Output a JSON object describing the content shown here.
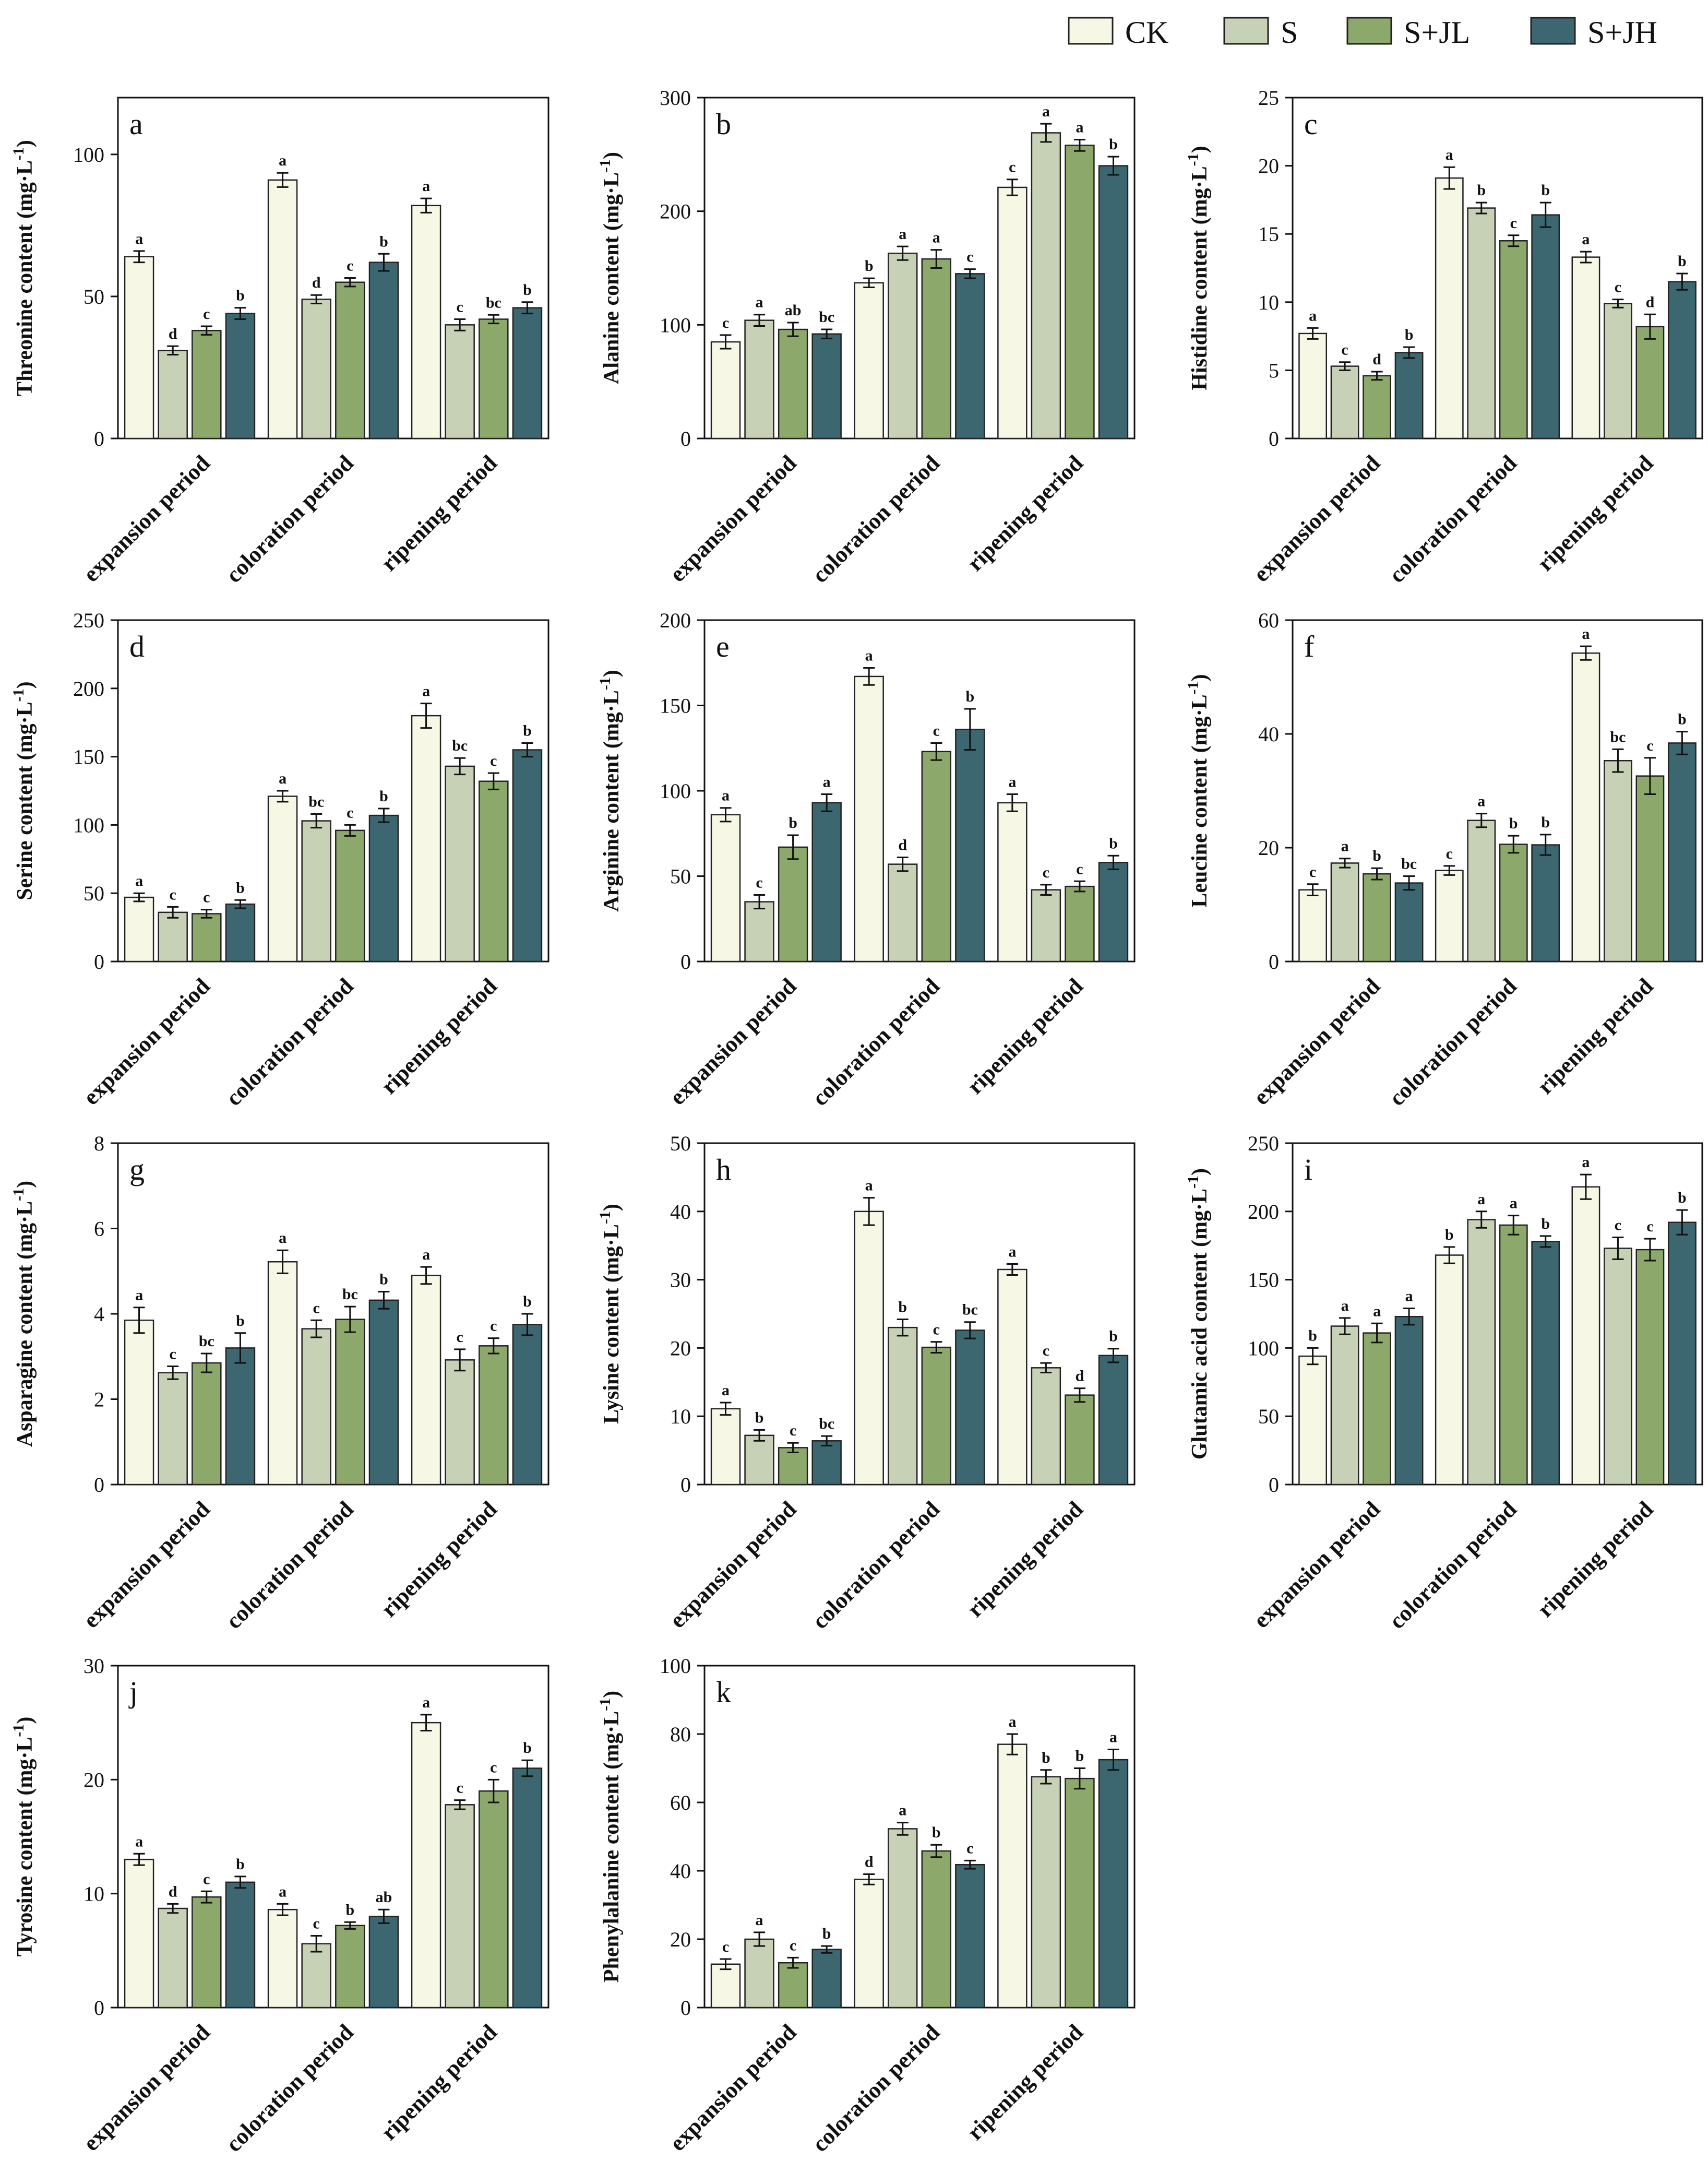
{
  "chart_data": {
    "type": "bar",
    "legend": {
      "placement": "top-right",
      "entries": [
        {
          "name": "CK",
          "color": "#f6f7e4"
        },
        {
          "name": "S",
          "color": "#c6d1b5"
        },
        {
          "name": "S+JL",
          "color": "#8da86b"
        },
        {
          "name": "S+JH",
          "color": "#3c6670"
        }
      ]
    },
    "categories": [
      "expansion period",
      "coloration period",
      "ripening period"
    ],
    "panels": [
      {
        "letter": "a",
        "ylabel": "Threonine content (mg·L",
        "ylim": [
          0,
          120
        ],
        "yticks": [
          0,
          50,
          100
        ],
        "values": [
          [
            64,
            31,
            38,
            44
          ],
          [
            91,
            49,
            55,
            62
          ],
          [
            82,
            40,
            42,
            46
          ]
        ],
        "errors": [
          [
            2,
            1.5,
            1.5,
            2
          ],
          [
            2.5,
            1.5,
            1.5,
            3
          ],
          [
            2.5,
            2,
            1.5,
            2
          ]
        ],
        "sig": [
          [
            "a",
            "d",
            "c",
            "b"
          ],
          [
            "a",
            "d",
            "c",
            "b"
          ],
          [
            "a",
            "c",
            "bc",
            "b"
          ]
        ]
      },
      {
        "letter": "b",
        "ylabel": "Alanine content (mg·L",
        "ylim": [
          0,
          300
        ],
        "yticks": [
          0,
          100,
          200,
          300
        ],
        "values": [
          [
            85,
            104,
            96,
            92
          ],
          [
            137,
            163,
            158,
            145
          ],
          [
            221,
            269,
            258,
            240
          ]
        ],
        "errors": [
          [
            6,
            5,
            6,
            4
          ],
          [
            4,
            6,
            8,
            4
          ],
          [
            7,
            8,
            5,
            8
          ]
        ],
        "sig": [
          [
            "c",
            "a",
            "ab",
            "bc"
          ],
          [
            "b",
            "a",
            "a",
            "c"
          ],
          [
            "c",
            "a",
            "a",
            "b"
          ]
        ]
      },
      {
        "letter": "c",
        "ylabel": "Histidine content (mg·L",
        "ylim": [
          0,
          25
        ],
        "yticks": [
          0,
          5,
          10,
          15,
          20,
          25
        ],
        "values": [
          [
            7.7,
            5.3,
            4.6,
            6.3
          ],
          [
            19.1,
            16.9,
            14.5,
            16.4
          ],
          [
            13.3,
            9.9,
            8.2,
            11.5
          ]
        ],
        "errors": [
          [
            0.4,
            0.3,
            0.3,
            0.4
          ],
          [
            0.8,
            0.4,
            0.4,
            0.9
          ],
          [
            0.4,
            0.3,
            0.9,
            0.6
          ]
        ],
        "sig": [
          [
            "a",
            "c",
            "d",
            "b"
          ],
          [
            "a",
            "b",
            "c",
            "b"
          ],
          [
            "a",
            "c",
            "d",
            "b"
          ]
        ]
      },
      {
        "letter": "d",
        "ylabel": "Serine content (mg·L",
        "ylim": [
          0,
          250
        ],
        "yticks": [
          0,
          50,
          100,
          150,
          200,
          250
        ],
        "values": [
          [
            47,
            36,
            35,
            42
          ],
          [
            121,
            103,
            96,
            107
          ],
          [
            180,
            143,
            132,
            155
          ]
        ],
        "errors": [
          [
            3,
            4,
            3,
            3
          ],
          [
            4,
            5,
            4,
            5
          ],
          [
            9,
            6,
            6,
            5
          ]
        ],
        "sig": [
          [
            "a",
            "c",
            "c",
            "b"
          ],
          [
            "a",
            "bc",
            "c",
            "b"
          ],
          [
            "a",
            "bc",
            "c",
            "b"
          ]
        ]
      },
      {
        "letter": "e",
        "ylabel": "Arginine content (mg·L",
        "ylim": [
          0,
          200
        ],
        "yticks": [
          0,
          50,
          100,
          150,
          200
        ],
        "values": [
          [
            86,
            35,
            67,
            93
          ],
          [
            167,
            57,
            123,
            136
          ],
          [
            93,
            42,
            44,
            58
          ]
        ],
        "errors": [
          [
            4,
            4,
            7,
            5
          ],
          [
            5,
            4,
            5,
            12
          ],
          [
            5,
            3,
            3,
            4
          ]
        ],
        "sig": [
          [
            "a",
            "c",
            "b",
            "a"
          ],
          [
            "a",
            "d",
            "c",
            "b"
          ],
          [
            "a",
            "c",
            "c",
            "b"
          ]
        ]
      },
      {
        "letter": "f",
        "ylabel": "Leucine content (mg·L",
        "ylim": [
          0,
          60
        ],
        "yticks": [
          0,
          20,
          40,
          60
        ],
        "values": [
          [
            12.6,
            17.3,
            15.4,
            13.8
          ],
          [
            16.0,
            24.8,
            20.6,
            20.5
          ],
          [
            54.2,
            35.3,
            32.6,
            38.4
          ]
        ],
        "errors": [
          [
            1.0,
            0.8,
            1.0,
            1.2
          ],
          [
            0.8,
            1.2,
            1.5,
            1.8
          ],
          [
            1.2,
            2.0,
            3.2,
            2.0
          ]
        ],
        "sig": [
          [
            "c",
            "a",
            "b",
            "bc"
          ],
          [
            "c",
            "a",
            "b",
            "b"
          ],
          [
            "a",
            "bc",
            "c",
            "b"
          ]
        ]
      },
      {
        "letter": "g",
        "ylabel": "Asparagine content (mg·L",
        "ylim": [
          0,
          8
        ],
        "yticks": [
          0,
          2,
          4,
          6,
          8
        ],
        "values": [
          [
            3.85,
            2.62,
            2.85,
            3.2
          ],
          [
            5.22,
            3.65,
            3.87,
            4.32
          ],
          [
            4.9,
            2.92,
            3.25,
            3.75
          ]
        ],
        "errors": [
          [
            0.3,
            0.15,
            0.22,
            0.35
          ],
          [
            0.27,
            0.2,
            0.3,
            0.2
          ],
          [
            0.2,
            0.25,
            0.18,
            0.25
          ]
        ],
        "sig": [
          [
            "a",
            "c",
            "bc",
            "b"
          ],
          [
            "a",
            "c",
            "bc",
            "b"
          ],
          [
            "a",
            "c",
            "c",
            "b"
          ]
        ]
      },
      {
        "letter": "h",
        "ylabel": "Lysine content (mg·L",
        "ylim": [
          0,
          50
        ],
        "yticks": [
          0,
          10,
          20,
          30,
          40,
          50
        ],
        "values": [
          [
            11.1,
            7.2,
            5.4,
            6.4
          ],
          [
            40.0,
            23.0,
            20.1,
            22.6
          ],
          [
            31.5,
            17.1,
            13.1,
            18.9
          ]
        ],
        "errors": [
          [
            0.9,
            0.8,
            0.7,
            0.7
          ],
          [
            2.0,
            1.2,
            0.8,
            1.2
          ],
          [
            0.8,
            0.7,
            1.0,
            1.0
          ]
        ],
        "sig": [
          [
            "a",
            "b",
            "c",
            "bc"
          ],
          [
            "a",
            "b",
            "c",
            "bc"
          ],
          [
            "a",
            "c",
            "d",
            "b"
          ]
        ]
      },
      {
        "letter": "i",
        "ylabel": "Glutamic acid content (mg·L",
        "ylim": [
          0,
          250
        ],
        "yticks": [
          0,
          50,
          100,
          150,
          200,
          250
        ],
        "values": [
          [
            94,
            116,
            111,
            123
          ],
          [
            168,
            194,
            190,
            178
          ],
          [
            218,
            173,
            172,
            192
          ]
        ],
        "errors": [
          [
            6,
            6,
            7,
            6
          ],
          [
            6,
            6,
            7,
            4
          ],
          [
            9,
            8,
            8,
            9
          ]
        ],
        "sig": [
          [
            "b",
            "a",
            "a",
            "a"
          ],
          [
            "b",
            "a",
            "a",
            "b"
          ],
          [
            "a",
            "c",
            "c",
            "b"
          ]
        ]
      },
      {
        "letter": "j",
        "ylabel": "Tyrosine content (mg·L",
        "ylim": [
          0,
          30
        ],
        "yticks": [
          0,
          10,
          20,
          30
        ],
        "values": [
          [
            13.0,
            8.7,
            9.7,
            11.0
          ],
          [
            8.6,
            5.6,
            7.2,
            8.0
          ],
          [
            25.0,
            17.8,
            19.0,
            21.0
          ]
        ],
        "errors": [
          [
            0.5,
            0.4,
            0.5,
            0.5
          ],
          [
            0.5,
            0.7,
            0.3,
            0.6
          ],
          [
            0.7,
            0.4,
            1.0,
            0.7
          ]
        ],
        "sig": [
          [
            "a",
            "d",
            "c",
            "b"
          ],
          [
            "a",
            "c",
            "b",
            "ab"
          ],
          [
            "a",
            "c",
            "c",
            "b"
          ]
        ]
      },
      {
        "letter": "k",
        "ylabel": "Phenylalanine content (mg·L",
        "ylim": [
          0,
          100
        ],
        "yticks": [
          0,
          20,
          40,
          60,
          80,
          100
        ],
        "values": [
          [
            12.7,
            20.0,
            13.1,
            17.0
          ],
          [
            37.5,
            52.3,
            45.8,
            41.8
          ],
          [
            77.0,
            67.5,
            67.0,
            72.5
          ]
        ],
        "errors": [
          [
            1.5,
            2.0,
            1.5,
            1.0
          ],
          [
            1.5,
            1.8,
            1.8,
            1.2
          ],
          [
            3.0,
            2.0,
            3.0,
            3.0
          ]
        ],
        "sig": [
          [
            "c",
            "a",
            "c",
            "b"
          ],
          [
            "d",
            "a",
            "b",
            "c"
          ],
          [
            "a",
            "b",
            "b",
            "a"
          ]
        ]
      }
    ]
  }
}
